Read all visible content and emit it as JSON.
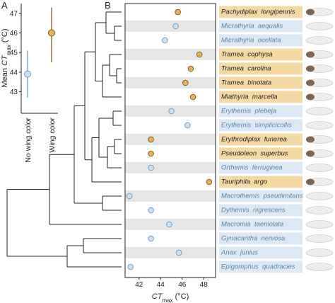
{
  "panel_labels": [
    "A",
    "B"
  ],
  "chart_data": [
    {
      "type": "errorbar",
      "ylabel": {
        "prefix": "Mean",
        "ct": "CT",
        "sub": "max",
        "unit": "(°C)"
      },
      "categories": [
        "No wing color",
        "Wing color"
      ],
      "values": [
        43.9,
        46.0
      ],
      "lower": [
        42.7,
        44.5
      ],
      "upper": [
        45.1,
        47.3
      ],
      "wing_color": [
        false,
        true
      ],
      "ylim": [
        41.9,
        47.5
      ],
      "yticks": [
        43,
        44,
        45,
        46,
        47
      ]
    },
    {
      "type": "dot",
      "xlabel": {
        "ct": "CT",
        "sub": "max",
        "unit": "(°C)"
      },
      "categories": [
        "Pachydiplax  longipennis",
        "Micrathyria  aequalis",
        "Micrathyria  ocellata",
        "Tramea  cophysa",
        "Tramea  carolina",
        "Tramea  binotata",
        "Miathyria  marcella",
        "Erythemis  plebeja",
        "Erythemis  simplicicollis",
        "Erythrodiplax  funerea",
        "Pseudoleon  superbus",
        "Orthemis  ferruginea",
        "Tauriphila  argo",
        "Macrothemis  pseudimitans",
        "Dythemis  nigrescens",
        "Macromia  taeniolata",
        "Gynacantha  nervosa",
        "Anax  junius",
        "Epigomphus  quadracies"
      ],
      "values": [
        45.6,
        45.4,
        44.4,
        47.6,
        46.8,
        46.3,
        47.0,
        45.0,
        46.5,
        43.1,
        43.1,
        43.1,
        48.5,
        41.1,
        43.1,
        44.8,
        43.1,
        45.7,
        41.2
      ],
      "wing_color": [
        true,
        false,
        false,
        true,
        true,
        true,
        true,
        false,
        false,
        true,
        true,
        false,
        true,
        false,
        false,
        false,
        false,
        false,
        false
      ],
      "xlim": [
        40.7,
        49.1
      ],
      "xticks": [
        42,
        44,
        46,
        48
      ]
    }
  ],
  "colors": {
    "wing": {
      "fill": "#e9b25b",
      "stroke": "#7d5f20",
      "label_bg": "#f4d9a4",
      "label_text": "#222222"
    },
    "no_wing": {
      "fill": "#cfe1f0",
      "stroke": "#6a9dc4",
      "label_bg": "#dce8f3",
      "label_text": "#5a86a8"
    },
    "row_band": "#e6e6e6"
  }
}
